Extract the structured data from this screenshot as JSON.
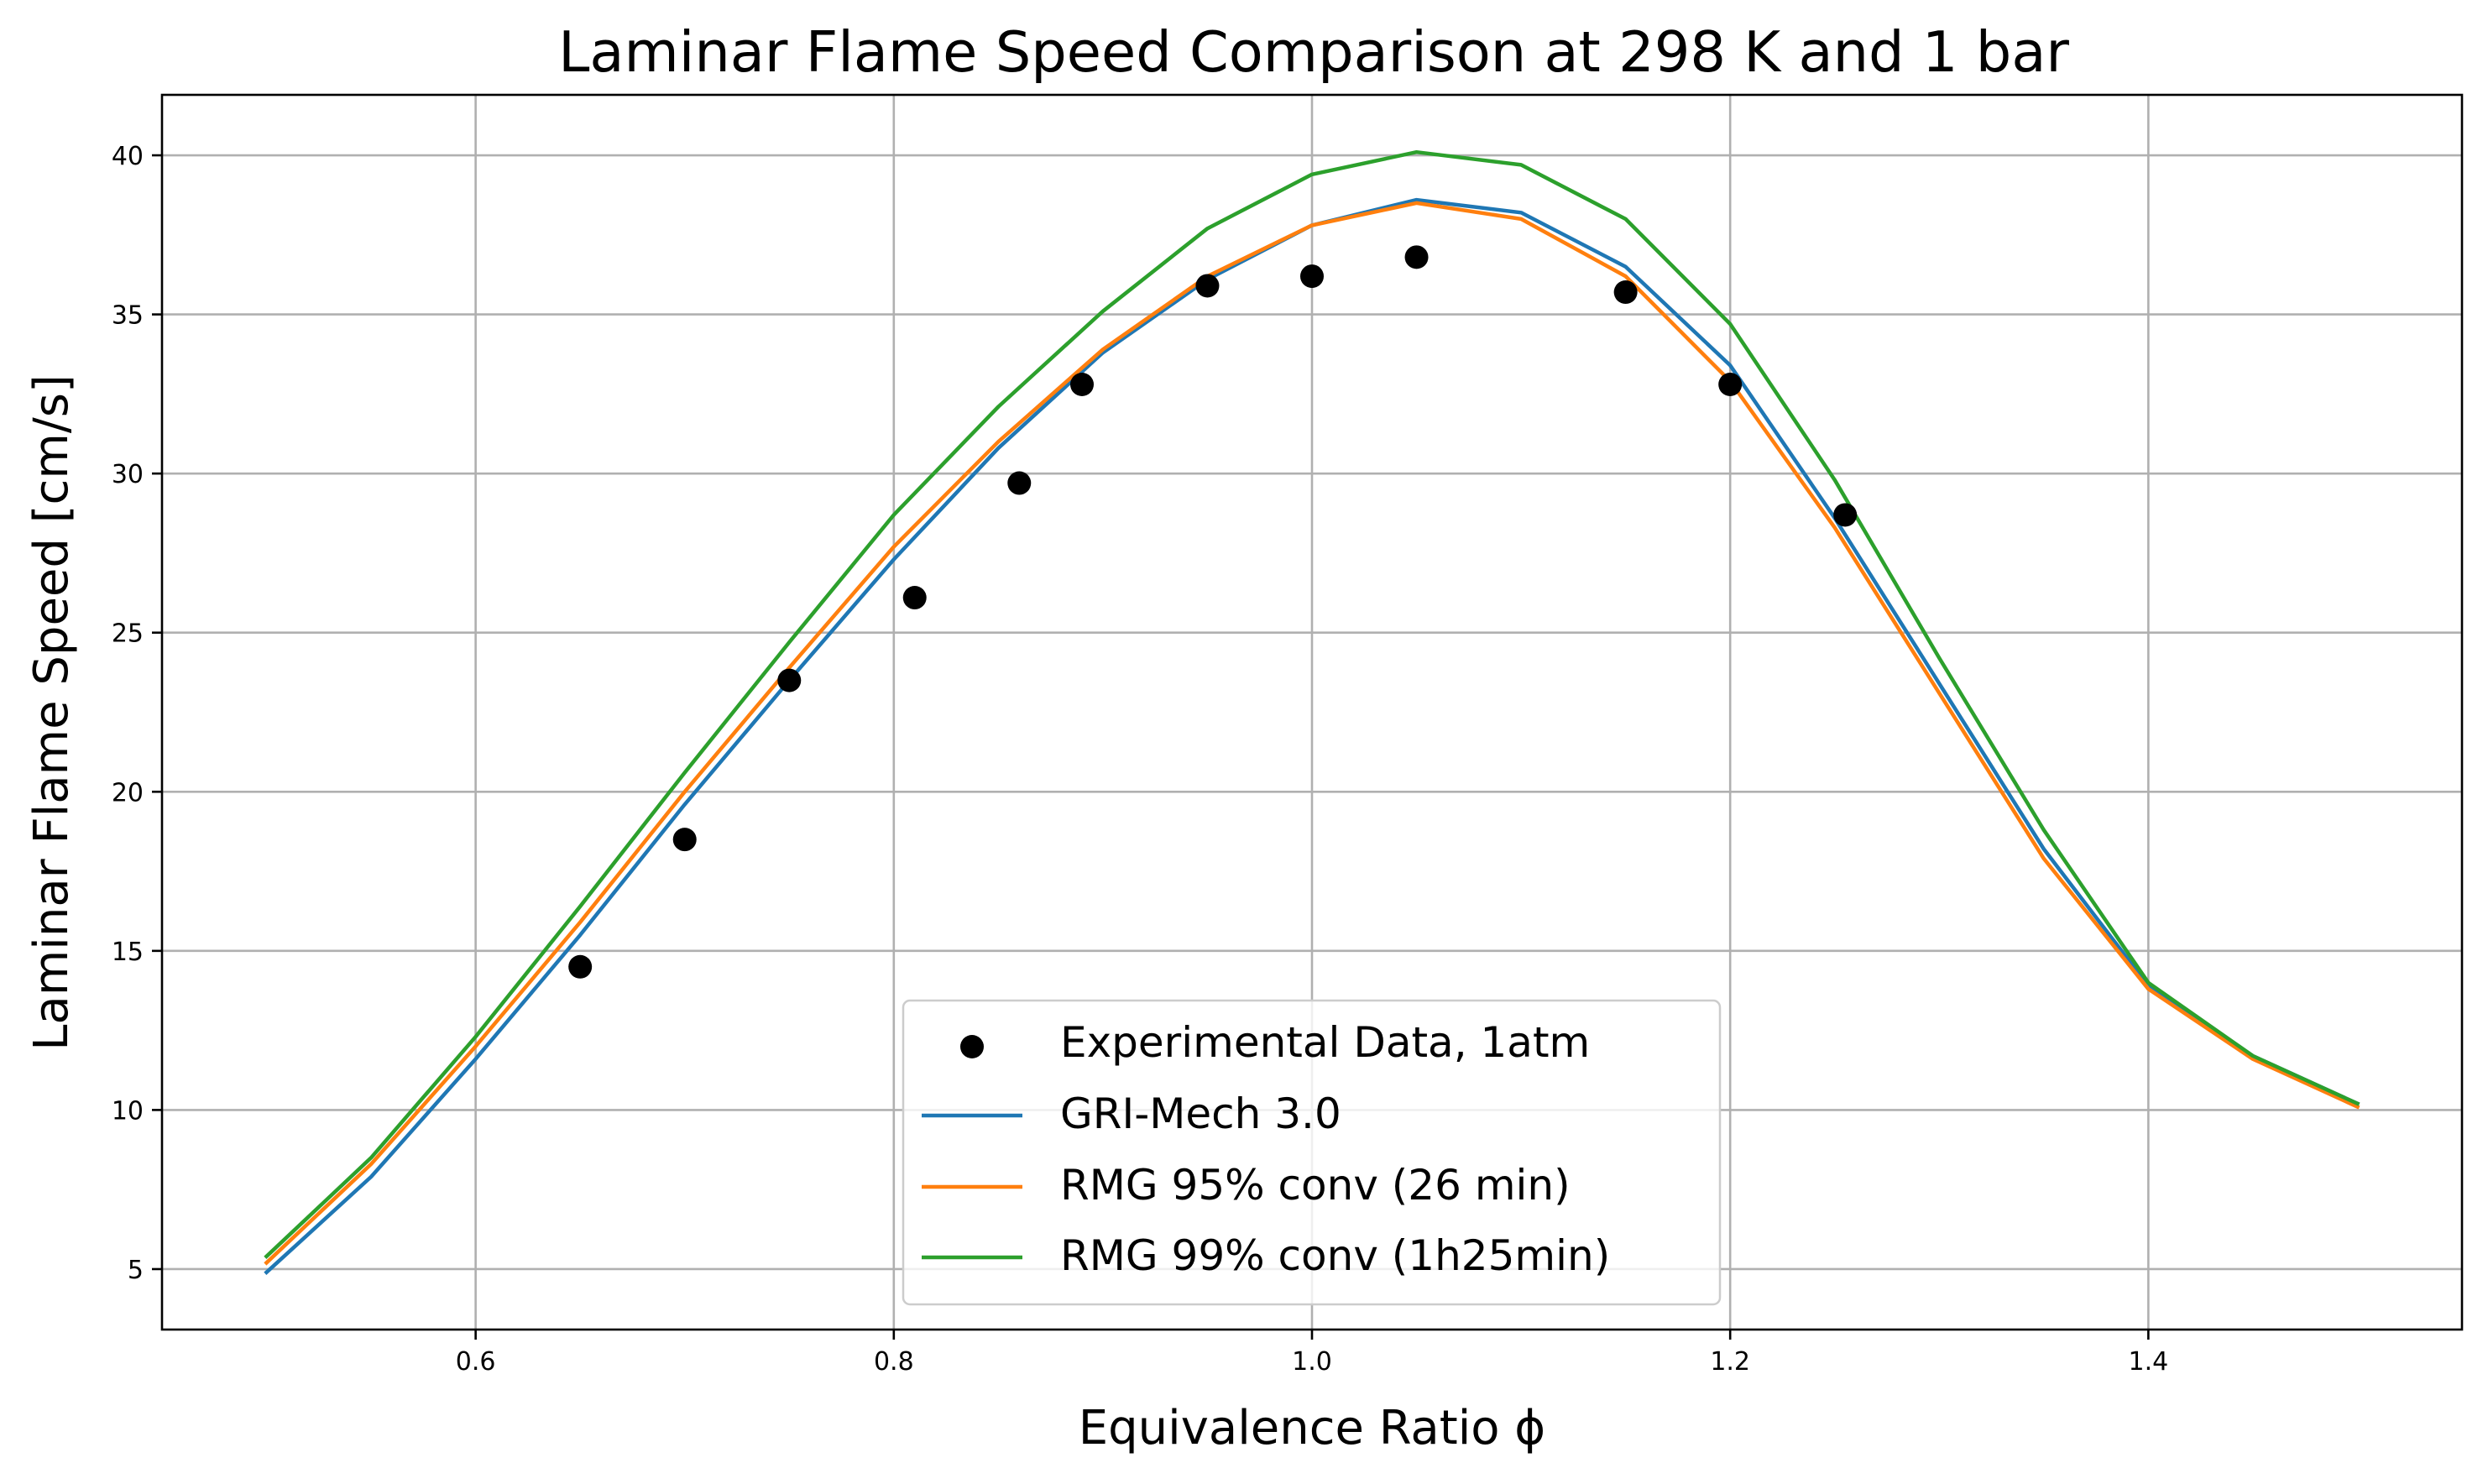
{
  "chart_data": {
    "type": "line",
    "title": "Laminar Flame Speed Comparison at 298 K and 1 bar",
    "xlabel": "Equivalence Ratio ϕ",
    "ylabel": "Laminar Flame Speed [cm/s]",
    "xlim": [
      0.45,
      1.55
    ],
    "ylim": [
      3.1,
      41.9
    ],
    "xticks": [
      0.6,
      0.8,
      1.0,
      1.2,
      1.4
    ],
    "xtick_labels": [
      "0.6",
      "0.8",
      "1.0",
      "1.2",
      "1.4"
    ],
    "yticks": [
      5,
      10,
      15,
      20,
      25,
      30,
      35,
      40
    ],
    "ytick_labels": [
      "5",
      "10",
      "15",
      "20",
      "25",
      "30",
      "35",
      "40"
    ],
    "grid": true,
    "legend_position": "bottom-center",
    "x": [
      0.5,
      0.55,
      0.6,
      0.65,
      0.7,
      0.75,
      0.8,
      0.85,
      0.9,
      0.95,
      1.0,
      1.05,
      1.1,
      1.15,
      1.2,
      1.25,
      1.3,
      1.35,
      1.4,
      1.45,
      1.5
    ],
    "series": [
      {
        "name": "GRI-Mech 3.0",
        "color": "#1f77b4",
        "values": [
          4.9,
          7.9,
          11.6,
          15.5,
          19.6,
          23.5,
          27.3,
          30.8,
          33.8,
          36.1,
          37.8,
          38.6,
          38.2,
          36.5,
          33.4,
          28.6,
          23.4,
          18.2,
          13.9,
          11.7,
          10.2
        ]
      },
      {
        "name": "RMG 95% conv (26 min)",
        "color": "#ff7f0e",
        "values": [
          5.2,
          8.3,
          12.0,
          15.9,
          20.0,
          23.9,
          27.7,
          31.0,
          33.9,
          36.2,
          37.8,
          38.5,
          38.0,
          36.2,
          32.9,
          28.3,
          23.1,
          17.9,
          13.8,
          11.6,
          10.1
        ]
      },
      {
        "name": "RMG 99% conv (1h25min)",
        "color": "#2ca02c",
        "values": [
          5.4,
          8.5,
          12.3,
          16.4,
          20.6,
          24.7,
          28.7,
          32.1,
          35.1,
          37.7,
          39.4,
          40.1,
          39.7,
          38.0,
          34.7,
          29.8,
          24.2,
          18.8,
          14.0,
          11.7,
          10.2
        ]
      }
    ],
    "scatter": {
      "name": "Experimental Data, 1atm",
      "color": "#000000",
      "x": [
        0.65,
        0.7,
        0.75,
        0.81,
        0.86,
        0.89,
        0.95,
        1.0,
        1.05,
        1.15,
        1.2,
        1.255
      ],
      "y": [
        14.5,
        18.5,
        23.5,
        26.1,
        29.7,
        32.8,
        35.9,
        36.2,
        36.8,
        35.7,
        32.8,
        28.7
      ]
    },
    "legend_entries": [
      "Experimental Data, 1atm",
      "GRI-Mech 3.0",
      "RMG 95% conv (26 min)",
      "RMG 99% conv (1h25min)"
    ]
  }
}
